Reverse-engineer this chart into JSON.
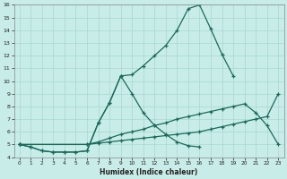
{
  "xlabel": "Humidex (Indice chaleur)",
  "bg_color": "#c8ece8",
  "grid_color": "#a8d8d0",
  "line_color": "#1a6b5a",
  "xlim": [
    -0.5,
    23.5
  ],
  "ylim": [
    4,
    16
  ],
  "yticks": [
    4,
    5,
    6,
    7,
    8,
    9,
    10,
    11,
    12,
    13,
    14,
    15,
    16
  ],
  "xticks": [
    0,
    1,
    2,
    3,
    4,
    5,
    6,
    7,
    8,
    9,
    10,
    11,
    12,
    13,
    14,
    15,
    16,
    17,
    18,
    19,
    20,
    21,
    22,
    23
  ],
  "curve1_x": [
    0,
    1,
    2,
    3,
    4,
    5,
    6,
    7,
    8,
    9,
    10,
    11,
    12,
    13,
    14,
    15,
    16,
    17,
    18,
    19
  ],
  "curve1_y": [
    5.0,
    4.8,
    4.5,
    4.4,
    4.4,
    4.4,
    4.5,
    6.7,
    8.3,
    10.4,
    10.5,
    11.2,
    12.0,
    12.8,
    14.0,
    15.7,
    16.0,
    14.1,
    12.1,
    10.4
  ],
  "curve2_x": [
    0,
    1,
    2,
    3,
    4,
    5,
    6,
    7,
    8,
    9,
    10,
    11,
    12,
    13,
    14,
    15,
    16
  ],
  "curve2_y": [
    5.0,
    4.8,
    4.5,
    4.4,
    4.4,
    4.4,
    4.5,
    6.7,
    8.3,
    10.4,
    9.0,
    7.5,
    6.5,
    5.8,
    5.2,
    4.9,
    4.8
  ],
  "curve3_x": [
    0,
    6,
    7,
    8,
    9,
    10,
    11,
    12,
    13,
    14,
    15,
    16,
    17,
    18,
    19,
    20,
    21,
    22,
    23
  ],
  "curve3_y": [
    5.0,
    5.0,
    5.2,
    5.5,
    5.8,
    6.0,
    6.2,
    6.5,
    6.7,
    7.0,
    7.2,
    7.4,
    7.6,
    7.8,
    8.0,
    8.2,
    7.5,
    6.5,
    5.0
  ],
  "curve4_x": [
    0,
    6,
    7,
    8,
    9,
    10,
    11,
    12,
    13,
    14,
    15,
    16,
    17,
    18,
    19,
    20,
    21,
    22,
    23
  ],
  "curve4_y": [
    5.0,
    5.0,
    5.1,
    5.2,
    5.3,
    5.4,
    5.5,
    5.6,
    5.7,
    5.8,
    5.9,
    6.0,
    6.2,
    6.4,
    6.6,
    6.8,
    7.0,
    7.2,
    9.0
  ]
}
